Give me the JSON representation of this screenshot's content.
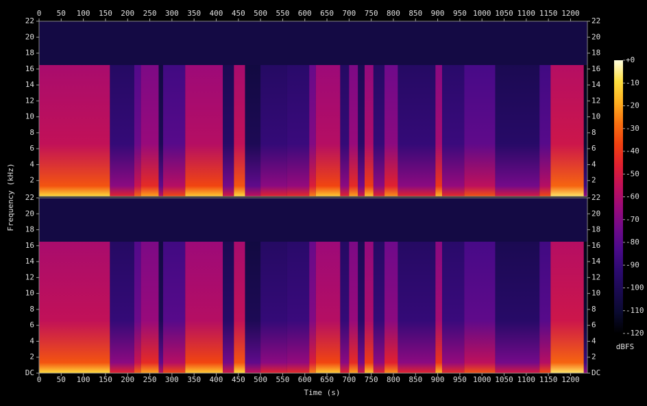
{
  "chart_data": {
    "type": "spectrogram",
    "x_label": "Time (s)",
    "y_label": "Frequency (kHz)",
    "xlim": [
      0,
      1238
    ],
    "xticks": [
      0,
      50,
      100,
      150,
      200,
      250,
      300,
      350,
      400,
      450,
      500,
      550,
      600,
      650,
      700,
      750,
      800,
      850,
      900,
      950,
      1000,
      1050,
      1100,
      1150,
      1200
    ],
    "ylim": [
      0,
      22
    ],
    "panels": [
      {
        "yticks": [
          2,
          4,
          6,
          8,
          10,
          12,
          14,
          16,
          18,
          20,
          22
        ]
      },
      {
        "yticks": [
          {
            "value": 0,
            "label": "DC"
          },
          2,
          4,
          6,
          8,
          10,
          12,
          14,
          16,
          18,
          20,
          22
        ]
      }
    ],
    "cutoff": 16.5,
    "noise_floor": -105,
    "segments": [
      {
        "start": 0,
        "end": 160,
        "level": -55
      },
      {
        "start": 160,
        "end": 215,
        "level": -90
      },
      {
        "start": 215,
        "end": 230,
        "level": -75
      },
      {
        "start": 230,
        "end": 270,
        "level": -65
      },
      {
        "start": 270,
        "end": 280,
        "level": -100
      },
      {
        "start": 280,
        "end": 330,
        "level": -80
      },
      {
        "start": 330,
        "end": 415,
        "level": -58
      },
      {
        "start": 415,
        "end": 440,
        "level": -95
      },
      {
        "start": 440,
        "end": 465,
        "level": -55
      },
      {
        "start": 465,
        "end": 500,
        "level": -100
      },
      {
        "start": 500,
        "end": 560,
        "level": -90
      },
      {
        "start": 560,
        "end": 610,
        "level": -88
      },
      {
        "start": 610,
        "end": 625,
        "level": -70
      },
      {
        "start": 625,
        "end": 680,
        "level": -58
      },
      {
        "start": 680,
        "end": 700,
        "level": -90
      },
      {
        "start": 700,
        "end": 720,
        "level": -65
      },
      {
        "start": 720,
        "end": 735,
        "level": -95
      },
      {
        "start": 735,
        "end": 755,
        "level": -60
      },
      {
        "start": 755,
        "end": 780,
        "level": -90
      },
      {
        "start": 780,
        "end": 810,
        "level": -68
      },
      {
        "start": 810,
        "end": 895,
        "level": -90
      },
      {
        "start": 895,
        "end": 910,
        "level": -62
      },
      {
        "start": 910,
        "end": 960,
        "level": -88
      },
      {
        "start": 960,
        "end": 1030,
        "level": -78
      },
      {
        "start": 1030,
        "end": 1130,
        "level": -95
      },
      {
        "start": 1130,
        "end": 1155,
        "level": -80
      },
      {
        "start": 1155,
        "end": 1230,
        "level": -52
      },
      {
        "start": 1230,
        "end": 1238,
        "level": -110
      }
    ],
    "colorbar": {
      "label": "dBFS",
      "lim": [
        -120,
        0
      ],
      "ticks": [
        {
          "value": 0,
          "label": "+0"
        },
        -10,
        -20,
        -30,
        -40,
        -50,
        -60,
        -70,
        -80,
        -90,
        -100,
        -110,
        -120
      ],
      "colormap": [
        "#000000",
        "#0a0a30",
        "#1a0a50",
        "#2c0a70",
        "#4a0a8a",
        "#700a8a",
        "#9a0a7a",
        "#c0105a",
        "#e02030",
        "#f04010",
        "#f87010",
        "#ffb020",
        "#ffe040",
        "#ffffe0"
      ]
    }
  }
}
